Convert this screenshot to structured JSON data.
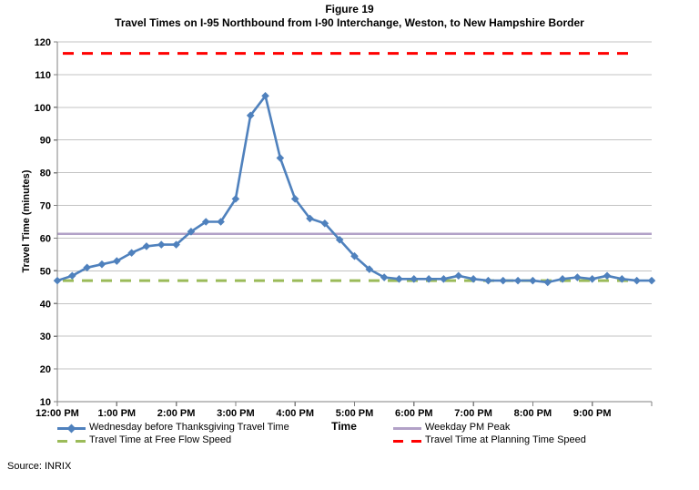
{
  "figure": {
    "title": "Figure 19",
    "subtitle": "Travel Times on I-95 Northbound from I-90 Interchange, Weston, to New Hampshire Border",
    "source": "Source: INRIX"
  },
  "chart_data": {
    "type": "line",
    "title": "Figure 19",
    "subtitle": "Travel Times on I-95 Northbound from I-90 Interchange, Weston, to New Hampshire Border",
    "xlabel": "Time",
    "ylabel": "Travel Time (minutes)",
    "ylim": [
      10,
      120
    ],
    "ytick_step": 10,
    "ytick_labels": [
      "10",
      "20",
      "30",
      "40",
      "50",
      "60",
      "70",
      "80",
      "90",
      "100",
      "110",
      "120"
    ],
    "x_tick_labels": [
      "12:00 PM",
      "1:00 PM",
      "2:00 PM",
      "3:00 PM",
      "4:00 PM",
      "5:00 PM",
      "6:00 PM",
      "7:00 PM",
      "8:00 PM",
      "9:00 PM"
    ],
    "x_axis_span_hours": 10,
    "sample_interval_minutes": 15,
    "grid": "horizontal",
    "legend_position": "bottom",
    "times": [
      "12:00 PM",
      "12:15 PM",
      "12:30 PM",
      "12:45 PM",
      "1:00 PM",
      "1:15 PM",
      "1:30 PM",
      "1:45 PM",
      "2:00 PM",
      "2:15 PM",
      "2:30 PM",
      "2:45 PM",
      "3:00 PM",
      "3:15 PM",
      "3:30 PM",
      "3:45 PM",
      "4:00 PM",
      "4:15 PM",
      "4:30 PM",
      "4:45 PM",
      "5:00 PM",
      "5:15 PM",
      "5:30 PM",
      "5:45 PM",
      "6:00 PM",
      "6:15 PM",
      "6:30 PM",
      "6:45 PM",
      "7:00 PM",
      "7:15 PM",
      "7:30 PM",
      "7:45 PM",
      "8:00 PM",
      "8:15 PM",
      "8:30 PM",
      "8:45 PM",
      "9:00 PM",
      "9:15 PM",
      "9:30 PM",
      "9:45 PM",
      "10:00 PM"
    ],
    "series": [
      {
        "name": "Wednesday before Thanksgiving Travel Time",
        "kind": "line",
        "color": "#4F81BD",
        "marker": "diamond",
        "values": [
          47,
          48.5,
          51,
          52,
          53,
          55.5,
          57.5,
          58,
          58,
          62,
          65,
          65,
          72,
          97.5,
          103.5,
          84.5,
          72,
          66,
          64.5,
          59.5,
          54.5,
          50.5,
          48,
          47.5,
          47.5,
          47.5,
          47.5,
          48.5,
          47.5,
          47,
          47,
          47,
          47,
          46.5,
          47.5,
          48,
          47.5,
          48.5,
          47.5,
          47,
          47
        ]
      },
      {
        "name": "Weekday PM Peak",
        "kind": "hline",
        "color": "#B2A1C7",
        "style": "solid",
        "value": 61.3
      },
      {
        "name": "Travel Time at Free Flow Speed",
        "kind": "hline",
        "color": "#9BBB59",
        "style": "dashed",
        "value": 47
      },
      {
        "name": "Travel Time at Planning Time Speed",
        "kind": "hline",
        "color": "#FF0000",
        "style": "dashed",
        "value": 116.5
      }
    ]
  },
  "colors": {
    "gridline": "#C3C3C3",
    "axis": "#808080",
    "text": "#000000"
  }
}
